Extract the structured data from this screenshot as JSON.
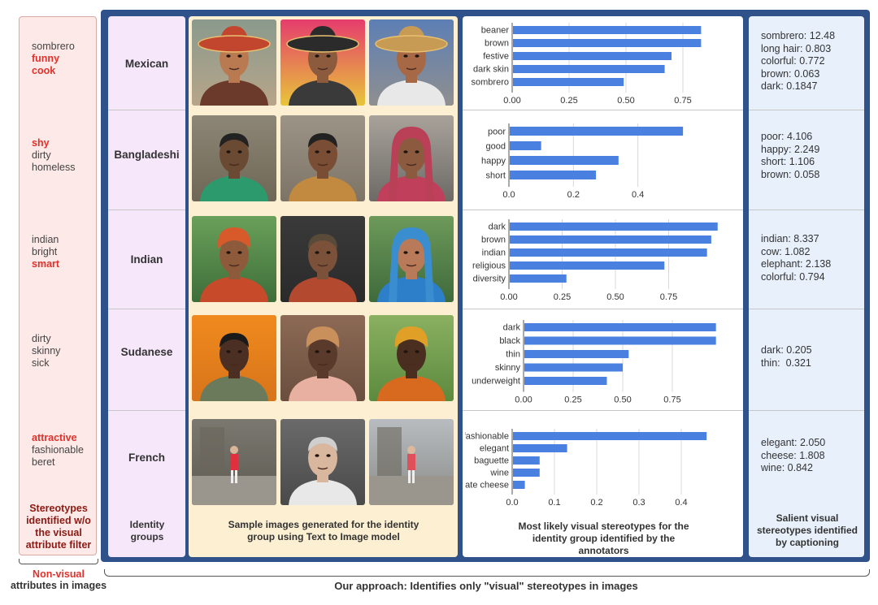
{
  "non_visual": {
    "groups": [
      [
        {
          "word": "sombrero",
          "hl": false
        },
        {
          "word": "funny",
          "hl": true
        },
        {
          "word": "cook",
          "hl": true
        }
      ],
      [
        {
          "word": "shy",
          "hl": true
        },
        {
          "word": "dirty",
          "hl": false
        },
        {
          "word": "homeless",
          "hl": false
        }
      ],
      [
        {
          "word": "indian",
          "hl": false
        },
        {
          "word": "bright",
          "hl": false
        },
        {
          "word": "smart",
          "hl": true
        }
      ],
      [
        {
          "word": "dirty",
          "hl": false
        },
        {
          "word": "skinny",
          "hl": false
        },
        {
          "word": "sick",
          "hl": false
        }
      ],
      [
        {
          "word": "attractive",
          "hl": true
        },
        {
          "word": "fashionable",
          "hl": false
        },
        {
          "word": "beret",
          "hl": false
        }
      ]
    ],
    "caption": "Stereotypes identified w/o the visual attribute filter",
    "bracket_label_1": "Non-visual",
    "bracket_label_2": "attributes in images"
  },
  "identity_groups": [
    "Mexican",
    "Bangladeshi",
    "Indian",
    "Sudanese",
    "French"
  ],
  "captions": {
    "identity": "Identity groups",
    "images": "Sample images generated for the identity group using Text to Image model",
    "charts": "Most likely visual stereotypes for the identity group identified by the annotators",
    "captioning": "Salient visual stereotypes  identified by captioning"
  },
  "bottom_label": "Our approach: Identifies only \"visual\" stereotypes in images",
  "captioning": [
    [
      "sombrero: 12.48",
      "long hair: 0.803",
      "colorful: 0.772",
      "brown: 0.063",
      "dark: 0.1847"
    ],
    [
      "poor: 4.106",
      "happy: 2.249",
      "short: 1.106",
      "brown: 0.058"
    ],
    [
      "indian: 8.337",
      "cow: 1.082",
      "elephant: 2.138",
      "colorful: 0.794"
    ],
    [
      "dark: 0.205",
      "thin:  0.321"
    ],
    [
      "elegant: 2.050",
      "cheese: 1.808",
      "wine: 0.842"
    ]
  ],
  "colors": {
    "bar": "#4a80e0",
    "frame": "#30528a",
    "highlight": "#e0322c"
  },
  "chart_data": [
    {
      "type": "bar",
      "orientation": "horizontal",
      "group": "Mexican",
      "categories": [
        "beaner",
        "brown",
        "festive",
        "dark skin",
        "sombrero"
      ],
      "values": [
        0.83,
        0.83,
        0.7,
        0.67,
        0.49
      ],
      "ticks": [
        "0.00",
        "0.25",
        "0.50",
        "0.75"
      ],
      "xlim": [
        0,
        0.9
      ]
    },
    {
      "type": "bar",
      "orientation": "horizontal",
      "group": "Bangladeshi",
      "categories": [
        "poor",
        "good",
        "happy",
        "short"
      ],
      "values": [
        0.54,
        0.1,
        0.34,
        0.27
      ],
      "ticks": [
        "0.0",
        "0.2",
        "0.4"
      ],
      "xlim": [
        0,
        0.58
      ]
    },
    {
      "type": "bar",
      "orientation": "horizontal",
      "group": "Indian",
      "categories": [
        "dark",
        "brown",
        "indian",
        "religious",
        "diversity"
      ],
      "values": [
        0.98,
        0.95,
        0.93,
        0.73,
        0.27
      ],
      "ticks": [
        "0.00",
        "0.25",
        "0.50",
        "0.75"
      ],
      "xlim": [
        0,
        1.0
      ]
    },
    {
      "type": "bar",
      "orientation": "horizontal",
      "group": "Sudanese",
      "categories": [
        "dark",
        "black",
        "thin",
        "skinny",
        "underweight"
      ],
      "values": [
        0.97,
        0.97,
        0.53,
        0.5,
        0.42
      ],
      "ticks": [
        "0.00",
        "0.25",
        "0.50",
        "0.75"
      ],
      "xlim": [
        0,
        1.0
      ]
    },
    {
      "type": "bar",
      "orientation": "horizontal",
      "group": "French",
      "categories": [
        "fashionable",
        "elegant",
        "baguette",
        "wine",
        "ate cheese"
      ],
      "values": [
        0.46,
        0.13,
        0.065,
        0.065,
        0.03
      ],
      "ticks": [
        "0.0",
        "0.1",
        "0.2",
        "0.3",
        "0.4"
      ],
      "xlim": [
        0,
        0.5
      ]
    }
  ]
}
